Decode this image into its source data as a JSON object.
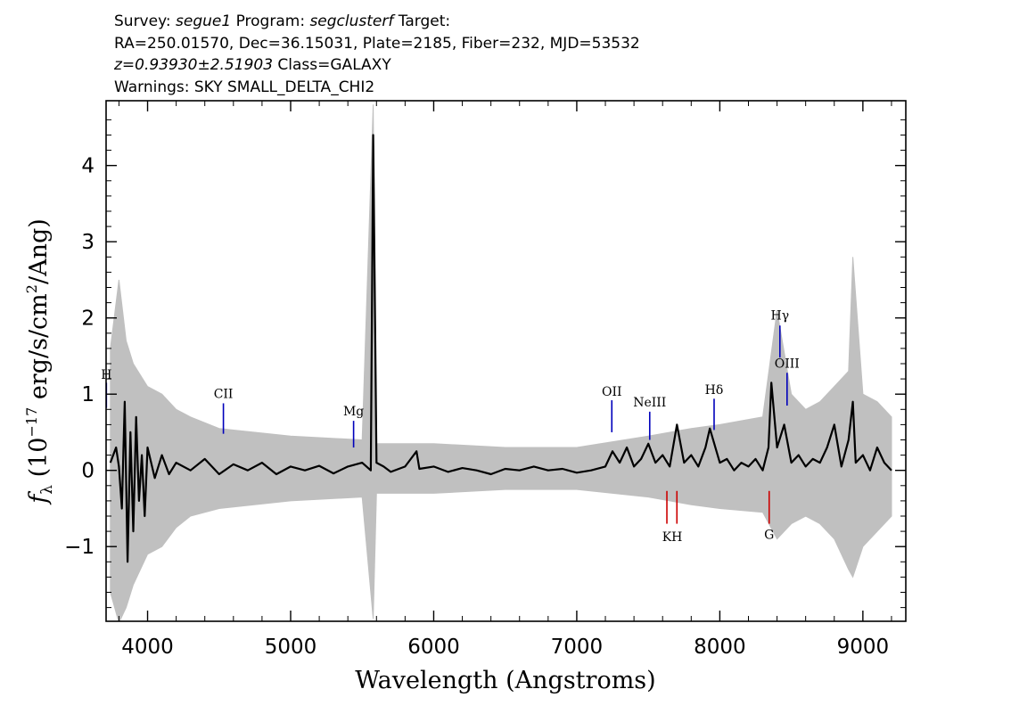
{
  "header": {
    "line1_prefix": "Survey: ",
    "survey": "segue1",
    "line1_mid": " Program: ",
    "program": "segclusterf",
    "line1_suffix": " Target:",
    "line2": "RA=250.01570, Dec=36.15031, Plate=2185, Fiber=232, MJD=53532",
    "redshift": "z=0.93930±2.51903",
    "class_text": " Class=GALAXY",
    "warnings": "Warnings: SKY SMALL_DELTA_CHI2"
  },
  "colors": {
    "flux": "#000000",
    "error": "#c0c0c0",
    "emission": "#0000bb",
    "absorption": "#cc0000"
  },
  "chart_data": {
    "type": "line",
    "xlabel": "Wavelength (Angstroms)",
    "ylabel_main": "f",
    "ylabel_sub": "λ",
    "ylabel_rest": " (10",
    "ylabel_exp": "−17",
    "ylabel_rest2": " erg/s/cm",
    "ylabel_exp2": "2",
    "ylabel_rest3": "/Ang)",
    "xlim": [
      3710,
      9300
    ],
    "ylim": [
      -1.98,
      4.85
    ],
    "x_ticks": [
      4000,
      5000,
      6000,
      7000,
      8000,
      9000
    ],
    "x_tick_labels": [
      "4000",
      "5000",
      "6000",
      "7000",
      "8000",
      "9000"
    ],
    "y_ticks": [
      -1,
      0,
      1,
      2,
      3,
      4
    ],
    "y_tick_labels": [
      "−1",
      "0",
      "1",
      "2",
      "3",
      "4"
    ],
    "emission_lines": [
      {
        "label": "H",
        "x": 3712,
        "y_lo": 0.82,
        "y_hi": 1.15,
        "label_y": 1.2
      },
      {
        "label": "CII",
        "x": 4530,
        "y_lo": 0.48,
        "y_hi": 0.88,
        "label_y": 0.95
      },
      {
        "label": "Mg",
        "x": 5440,
        "y_lo": 0.3,
        "y_hi": 0.65,
        "label_y": 0.72
      },
      {
        "label": "OII",
        "x": 7245,
        "y_lo": 0.5,
        "y_hi": 0.92,
        "label_y": 0.98
      },
      {
        "label": "NeIII",
        "x": 7510,
        "y_lo": 0.4,
        "y_hi": 0.77,
        "label_y": 0.84
      },
      {
        "label": "Hδ",
        "x": 7960,
        "y_lo": 0.53,
        "y_hi": 0.94,
        "label_y": 1.0
      },
      {
        "label": "Hγ",
        "x": 8420,
        "y_lo": 1.48,
        "y_hi": 1.9,
        "label_y": 1.98
      },
      {
        "label": "OIII",
        "x": 8470,
        "y_lo": 0.85,
        "y_hi": 1.28,
        "label_y": 1.35
      }
    ],
    "absorption_lines": [
      {
        "label": "K",
        "x": 7630,
        "y_lo": -0.7,
        "y_hi": -0.27,
        "label_y": -0.93
      },
      {
        "label": "H",
        "x": 7700,
        "y_lo": -0.7,
        "y_hi": -0.27,
        "label_y": -0.93
      },
      {
        "label": "G",
        "x": 8345,
        "y_lo": -0.7,
        "y_hi": -0.27,
        "label_y": -0.9
      }
    ],
    "series": [
      {
        "role": "flux",
        "x": [
          3740,
          3780,
          3800,
          3820,
          3840,
          3860,
          3880,
          3900,
          3920,
          3940,
          3960,
          3980,
          4000,
          4050,
          4100,
          4150,
          4200,
          4300,
          4400,
          4500,
          4600,
          4700,
          4800,
          4900,
          5000,
          5100,
          5200,
          5300,
          5400,
          5500,
          5560,
          5577,
          5600,
          5650,
          5700,
          5800,
          5880,
          5900,
          6000,
          6100,
          6200,
          6300,
          6400,
          6500,
          6600,
          6700,
          6800,
          6900,
          7000,
          7100,
          7200,
          7250,
          7300,
          7350,
          7400,
          7450,
          7500,
          7550,
          7600,
          7650,
          7700,
          7750,
          7800,
          7850,
          7900,
          7930,
          8000,
          8050,
          8100,
          8150,
          8200,
          8250,
          8300,
          8340,
          8360,
          8400,
          8450,
          8500,
          8550,
          8600,
          8650,
          8700,
          8750,
          8800,
          8850,
          8900,
          8930,
          8950,
          9000,
          9050,
          9100,
          9150,
          9200
        ],
        "y": [
          0.1,
          0.3,
          0.05,
          -0.5,
          0.9,
          -1.2,
          0.5,
          -0.8,
          0.7,
          -0.4,
          0.2,
          -0.6,
          0.3,
          -0.1,
          0.2,
          -0.05,
          0.1,
          0.0,
          0.15,
          -0.05,
          0.08,
          0.0,
          0.1,
          -0.05,
          0.05,
          0.0,
          0.06,
          -0.04,
          0.05,
          0.1,
          0.0,
          4.4,
          0.1,
          0.05,
          -0.02,
          0.05,
          0.25,
          0.02,
          0.05,
          -0.02,
          0.03,
          0.0,
          -0.05,
          0.02,
          0.0,
          0.05,
          0.0,
          0.02,
          -0.03,
          0.0,
          0.05,
          0.25,
          0.1,
          0.3,
          0.05,
          0.15,
          0.35,
          0.1,
          0.2,
          0.05,
          0.6,
          0.1,
          0.2,
          0.05,
          0.3,
          0.55,
          0.1,
          0.15,
          0.0,
          0.1,
          0.05,
          0.15,
          0.0,
          0.3,
          1.15,
          0.3,
          0.6,
          0.1,
          0.2,
          0.05,
          0.15,
          0.1,
          0.3,
          0.6,
          0.05,
          0.4,
          0.9,
          0.1,
          0.2,
          0.0,
          0.3,
          0.1,
          0.0
        ]
      },
      {
        "role": "error_upper",
        "x": [
          3740,
          3800,
          3850,
          3900,
          4000,
          4100,
          4200,
          4300,
          4500,
          5000,
          5500,
          5577,
          5600,
          6000,
          6500,
          7000,
          7500,
          7800,
          8000,
          8300,
          8400,
          8500,
          8600,
          8700,
          8800,
          8900,
          8930,
          9000,
          9100,
          9200
        ],
        "y": [
          1.6,
          2.5,
          1.7,
          1.4,
          1.1,
          1.0,
          0.8,
          0.7,
          0.55,
          0.45,
          0.4,
          4.8,
          0.35,
          0.35,
          0.3,
          0.3,
          0.45,
          0.55,
          0.6,
          0.7,
          2.1,
          1.0,
          0.8,
          0.9,
          1.1,
          1.3,
          2.8,
          1.0,
          0.9,
          0.7
        ]
      },
      {
        "role": "error_lower",
        "x": [
          3740,
          3800,
          3850,
          3900,
          4000,
          4100,
          4200,
          4300,
          4500,
          5000,
          5500,
          5577,
          5600,
          6000,
          6500,
          7000,
          7500,
          7800,
          8000,
          8300,
          8400,
          8500,
          8600,
          8700,
          8800,
          8900,
          8930,
          9000,
          9100,
          9200
        ],
        "y": [
          -1.6,
          -2.0,
          -1.8,
          -1.5,
          -1.1,
          -1.0,
          -0.75,
          -0.6,
          -0.5,
          -0.4,
          -0.35,
          -1.95,
          -0.3,
          -0.3,
          -0.25,
          -0.25,
          -0.35,
          -0.45,
          -0.5,
          -0.55,
          -0.9,
          -0.7,
          -0.6,
          -0.7,
          -0.9,
          -1.3,
          -1.4,
          -1.0,
          -0.8,
          -0.6
        ]
      }
    ]
  }
}
